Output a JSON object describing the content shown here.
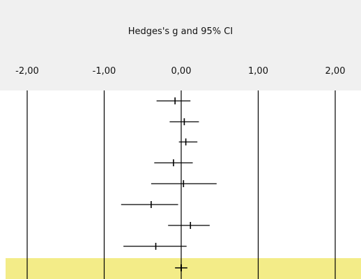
{
  "chart_data": {
    "type": "forest",
    "title": "Hedges's g and 95% CI",
    "xlim": [
      -2,
      2
    ],
    "x_ticks": [
      -2,
      -1,
      0,
      1,
      2
    ],
    "x_tick_labels": [
      "-2,00",
      "-1,00",
      "0,00",
      "1,00",
      "2,00"
    ],
    "grid": "vertical lines at major ticks",
    "studies": [
      {
        "g": -0.08,
        "lower": -0.32,
        "upper": 0.12
      },
      {
        "g": 0.04,
        "lower": -0.15,
        "upper": 0.23
      },
      {
        "g": 0.06,
        "lower": -0.03,
        "upper": 0.21
      },
      {
        "g": -0.1,
        "lower": -0.35,
        "upper": 0.15
      },
      {
        "g": 0.03,
        "lower": -0.39,
        "upper": 0.46
      },
      {
        "g": -0.39,
        "lower": -0.78,
        "upper": -0.04
      },
      {
        "g": 0.12,
        "lower": -0.17,
        "upper": 0.37
      },
      {
        "g": -0.33,
        "lower": -0.75,
        "upper": 0.07
      }
    ],
    "summary": {
      "g": 0.0,
      "lower": -0.08,
      "upper": 0.08
    },
    "colors": {
      "header_bg": "#f0f0f0",
      "summary_band": "#f3ec88",
      "lines": "#000000"
    }
  }
}
